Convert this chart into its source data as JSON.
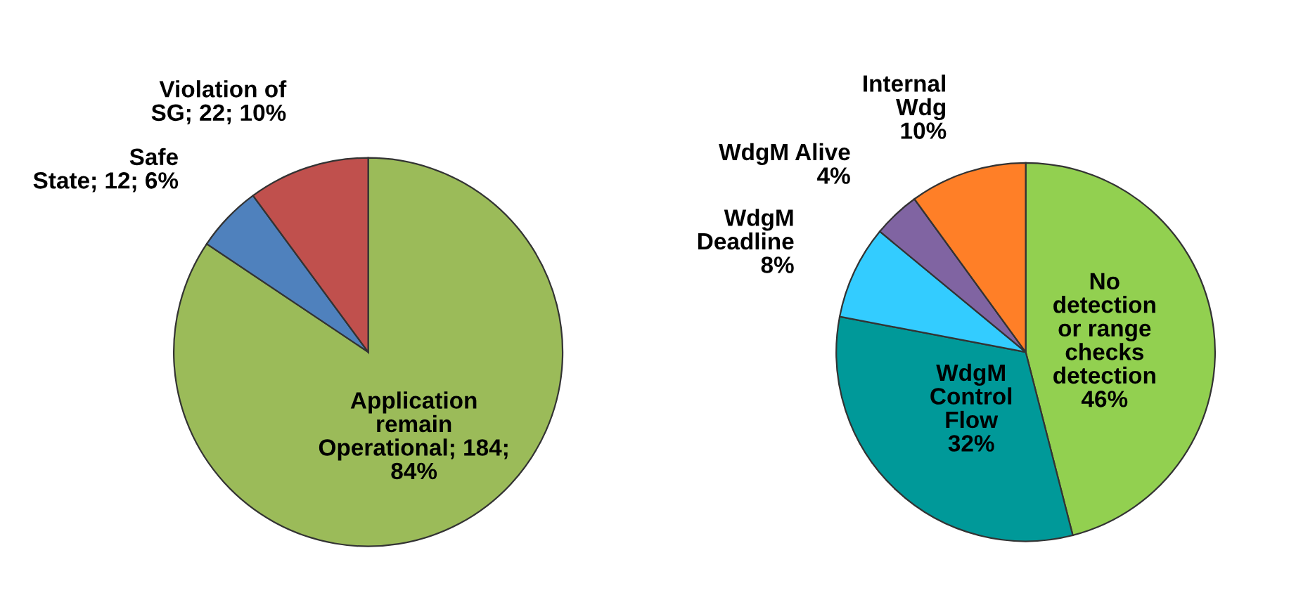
{
  "chart_data": [
    {
      "type": "pie",
      "categories": [
        "Application remain Operational",
        "Safe State",
        "Violation of SG"
      ],
      "values": [
        184,
        12,
        22
      ],
      "value_labels": [
        "184; 84%",
        "12; 6%",
        "22; 10%"
      ],
      "colors": [
        "#9bbb59",
        "#4f81bd",
        "#c0504d"
      ]
    },
    {
      "type": "pie",
      "categories": [
        "No detection or range checks detection",
        "WdgM Control Flow",
        "WdgM Deadline",
        "WdgM Alive",
        "Internal Wdg"
      ],
      "values": [
        46,
        32,
        8,
        4,
        10
      ],
      "value_labels": [
        "46%",
        "32%",
        "8%",
        "4%",
        "10%"
      ],
      "colors": [
        "#92d050",
        "#009999",
        "#33ccff",
        "#8064a2",
        "#ff7f27"
      ]
    }
  ]
}
